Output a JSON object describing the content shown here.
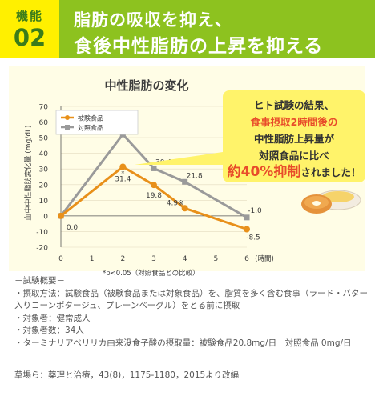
{
  "header": {
    "badge_label": "機能",
    "badge_number": "02",
    "title_line1": "脂肪の吸収を抑え、",
    "title_line2": "食後中性脂肪の上昇を抑える"
  },
  "callout": {
    "line1": "ヒト試験の結果、",
    "line2": "食事摂取2時間後の",
    "line3": "中性脂肪上昇量が",
    "line4": "対照食品に比べ",
    "line5_emph": "約40%抑制",
    "line5_rest": "されました！"
  },
  "colors": {
    "header_green": "#8dc21f",
    "badge_yellow": "#fff000",
    "panel_bg": "#fffde6",
    "test_series": "#e8901a",
    "control_series": "#9a9a9a",
    "emphasis_red": "#e84c2a"
  },
  "chart_data": {
    "type": "line",
    "title": "中性脂肪の変化",
    "ylabel": "血中中性脂肪変化量 (mg/dL)",
    "xlabel": "(時間)",
    "x": [
      0,
      2,
      3,
      4,
      6
    ],
    "xticks": [
      "0",
      "1",
      "2",
      "3",
      "4",
      "5",
      "6"
    ],
    "yticks": [
      "70",
      "60",
      "50",
      "40",
      "30",
      "20",
      "10",
      "0",
      "-10",
      "-20"
    ],
    "ylim": [
      -20,
      70
    ],
    "xlim": [
      0,
      6
    ],
    "legend_position": "top-left",
    "series": [
      {
        "name": "被験食品",
        "values": [
          0,
          31.4,
          19.8,
          4.9,
          -8.5
        ],
        "labels": [
          "0.0",
          "31.4",
          "19.8",
          "4.9※",
          "-8.5"
        ],
        "color": "#e8901a",
        "marker": "circle"
      },
      {
        "name": "対照食品",
        "values": [
          0,
          52.1,
          30.4,
          21.8,
          -1.0
        ],
        "labels": [
          "",
          "52.1",
          "30.4",
          "21.8",
          "-1.0"
        ],
        "color": "#9a9a9a",
        "marker": "square"
      }
    ],
    "significance_marker": "*",
    "footnote": "*p<0.05（対照食品との比較）"
  },
  "notes": {
    "line1": "－試験概要－",
    "line2": "・摂取方法：試験食品（被験食品または対象食品）を、脂質を多く含む食事（ラード・バター",
    "line3": "入りコーンポタージュ、プレーンベーグル）をとる前に摂取",
    "line4": "・対象者：健常成人",
    "line5": "・対象者数：34人",
    "line6": "・ターミナリアベリリカ由来没食子酸の摂取量：被験食品20.8mg/日　対照食品 0mg/日"
  },
  "source": "草場ら：薬理と治療，43(8)，1175-1180，2015より改編"
}
